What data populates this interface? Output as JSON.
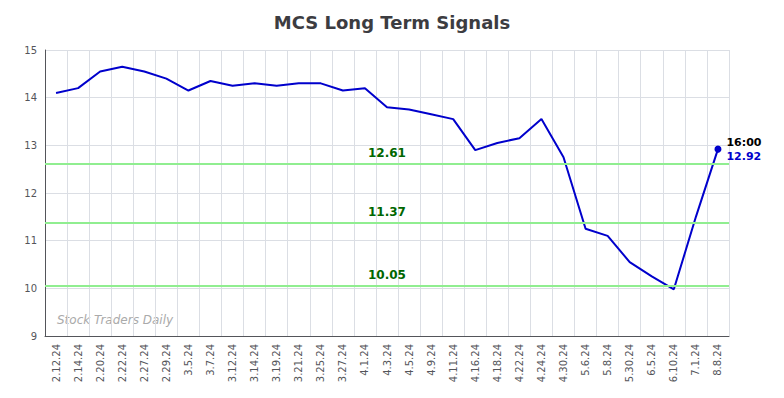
{
  "chart_data": {
    "type": "line",
    "title": "MCS Long Term Signals",
    "categories": [
      "2.12.24",
      "2.14.24",
      "2.20.24",
      "2.22.24",
      "2.27.24",
      "2.29.24",
      "3.5.24",
      "3.7.24",
      "3.12.24",
      "3.14.24",
      "3.19.24",
      "3.21.24",
      "3.25.24",
      "3.27.24",
      "4.1.24",
      "4.3.24",
      "4.5.24",
      "4.9.24",
      "4.11.24",
      "4.16.24",
      "4.18.24",
      "4.22.24",
      "4.24.24",
      "4.30.24",
      "5.6.24",
      "5.8.24",
      "5.30.24",
      "6.5.24",
      "6.10.24",
      "7.1.24",
      "8.8.24"
    ],
    "values": [
      14.1,
      14.2,
      14.55,
      14.65,
      14.55,
      14.4,
      14.15,
      14.35,
      14.25,
      14.3,
      14.25,
      14.3,
      14.3,
      14.15,
      14.2,
      13.8,
      13.75,
      13.65,
      13.55,
      12.9,
      13.05,
      13.15,
      13.55,
      12.75,
      11.25,
      11.1,
      10.55,
      10.25,
      9.98,
      11.5,
      12.92
    ],
    "color": "#0000cc",
    "annotations": [
      "16:00",
      "12.92"
    ],
    "hlines": [
      {
        "value": 12.61,
        "label": "12.61"
      },
      {
        "value": 11.37,
        "label": "11.37"
      },
      {
        "value": 10.05,
        "label": "10.05"
      }
    ],
    "hline_color": "#90ee90",
    "hline_label_color": "#006600",
    "watermark": "Stock Traders Daily",
    "ylim": [
      9,
      15
    ],
    "yticks": [
      9,
      10,
      11,
      12,
      13,
      14,
      15
    ],
    "grid": true
  }
}
